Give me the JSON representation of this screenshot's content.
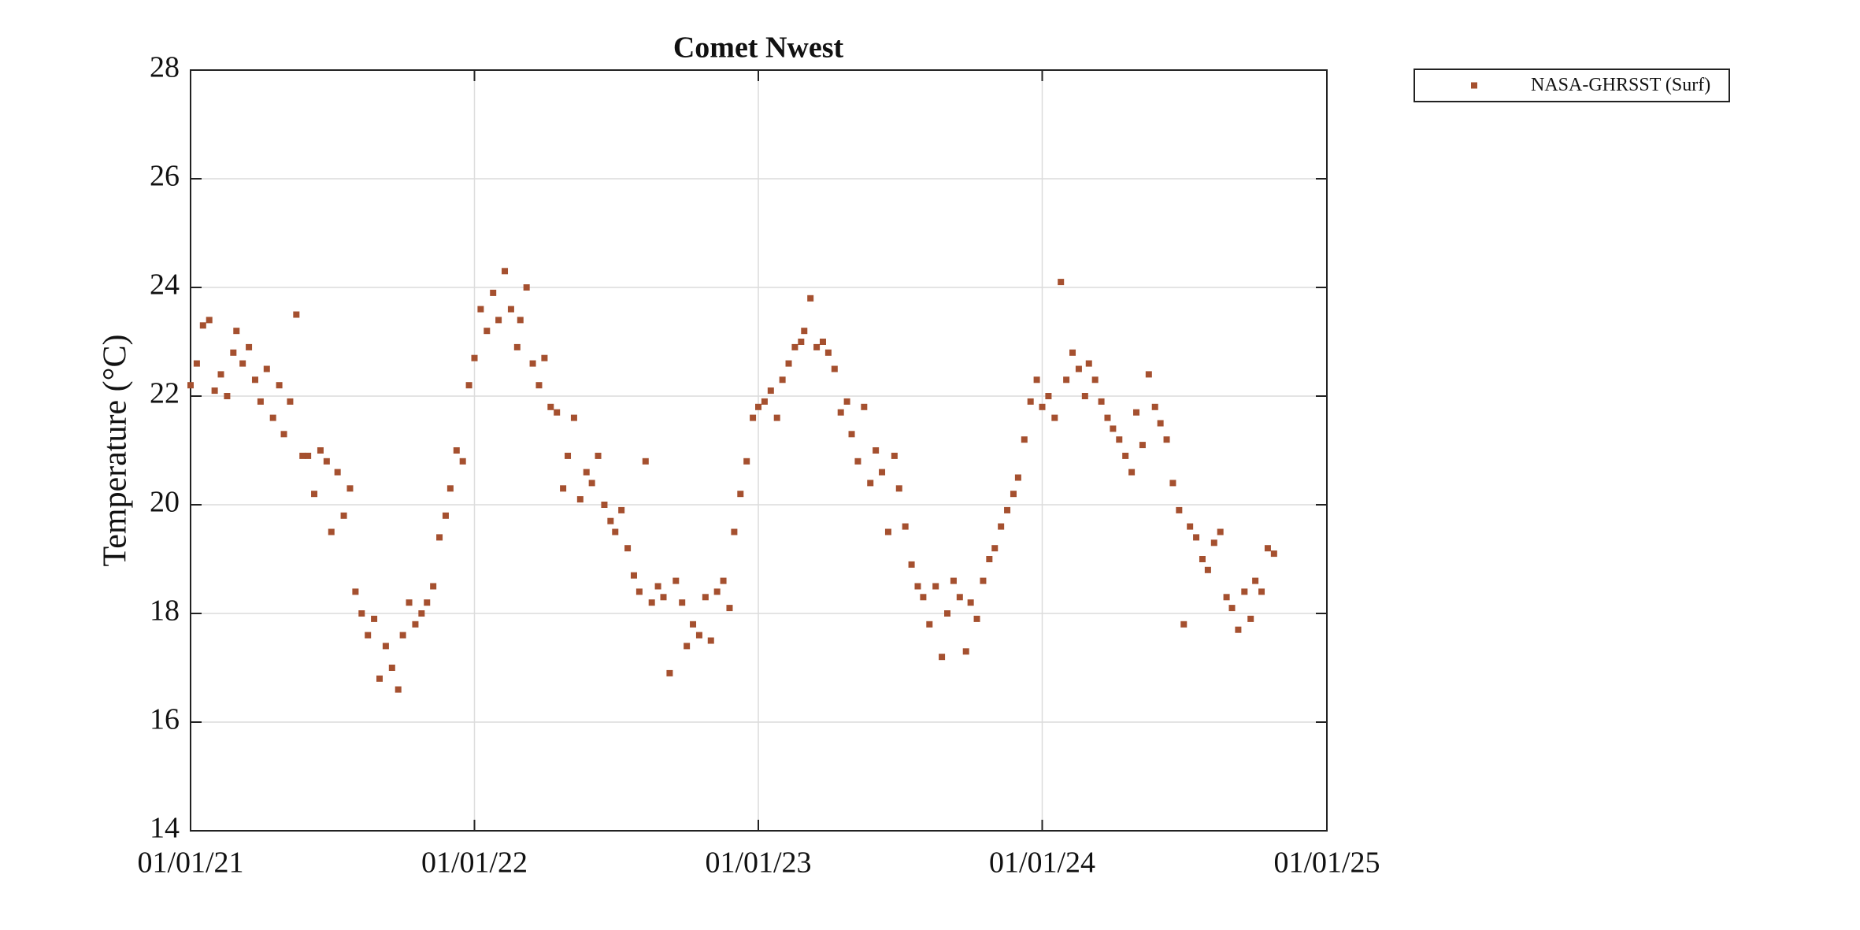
{
  "chart_data": {
    "type": "scatter",
    "title": "Comet Nwest",
    "ylabel": "Temperature (°C)",
    "legend": "outside-upper-right",
    "grid": true,
    "xlim": [
      "2021-01-01",
      "2025-01-01"
    ],
    "xticks": [
      {
        "value": "2021-01-01",
        "label": "01/01/21"
      },
      {
        "value": "2022-01-01",
        "label": "01/01/22"
      },
      {
        "value": "2023-01-01",
        "label": "01/01/23"
      },
      {
        "value": "2024-01-01",
        "label": "01/01/24"
      },
      {
        "value": "2025-01-01",
        "label": "01/01/25"
      }
    ],
    "ylim": [
      14,
      28
    ],
    "yticks": [
      14,
      16,
      18,
      20,
      22,
      24,
      26,
      28
    ],
    "x": [
      "2021-01-01",
      "2021-01-09",
      "2021-01-17",
      "2021-01-25",
      "2021-02-01",
      "2021-02-09",
      "2021-02-17",
      "2021-02-25",
      "2021-03-01",
      "2021-03-09",
      "2021-03-17",
      "2021-03-25",
      "2021-04-01",
      "2021-04-09",
      "2021-04-17",
      "2021-04-25",
      "2021-05-01",
      "2021-05-09",
      "2021-05-17",
      "2021-05-25",
      "2021-06-01",
      "2021-06-09",
      "2021-06-17",
      "2021-06-25",
      "2021-07-01",
      "2021-07-09",
      "2021-07-17",
      "2021-07-25",
      "2021-08-01",
      "2021-08-09",
      "2021-08-17",
      "2021-08-25",
      "2021-09-01",
      "2021-09-09",
      "2021-09-17",
      "2021-09-25",
      "2021-10-01",
      "2021-10-09",
      "2021-10-17",
      "2021-10-25",
      "2021-11-01",
      "2021-11-09",
      "2021-11-17",
      "2021-11-25",
      "2021-12-01",
      "2021-12-09",
      "2021-12-17",
      "2021-12-25",
      "2022-01-01",
      "2022-01-09",
      "2022-01-17",
      "2022-01-25",
      "2022-02-01",
      "2022-02-09",
      "2022-02-17",
      "2022-02-25",
      "2022-03-01",
      "2022-03-09",
      "2022-03-17",
      "2022-03-25",
      "2022-04-01",
      "2022-04-09",
      "2022-04-17",
      "2022-04-25",
      "2022-05-01",
      "2022-05-09",
      "2022-05-17",
      "2022-05-25",
      "2022-06-01",
      "2022-06-09",
      "2022-06-17",
      "2022-06-25",
      "2022-07-01",
      "2022-07-09",
      "2022-07-17",
      "2022-07-25",
      "2022-08-01",
      "2022-08-09",
      "2022-08-17",
      "2022-08-25",
      "2022-09-01",
      "2022-09-09",
      "2022-09-17",
      "2022-09-25",
      "2022-10-01",
      "2022-10-09",
      "2022-10-17",
      "2022-10-25",
      "2022-11-01",
      "2022-11-09",
      "2022-11-17",
      "2022-11-25",
      "2022-12-01",
      "2022-12-09",
      "2022-12-17",
      "2022-12-25",
      "2023-01-01",
      "2023-01-09",
      "2023-01-17",
      "2023-01-25",
      "2023-02-01",
      "2023-02-09",
      "2023-02-17",
      "2023-02-25",
      "2023-03-01",
      "2023-03-09",
      "2023-03-17",
      "2023-03-25",
      "2023-04-01",
      "2023-04-09",
      "2023-04-17",
      "2023-04-25",
      "2023-05-01",
      "2023-05-09",
      "2023-05-17",
      "2023-05-25",
      "2023-06-01",
      "2023-06-09",
      "2023-06-17",
      "2023-06-25",
      "2023-07-01",
      "2023-07-09",
      "2023-07-17",
      "2023-07-25",
      "2023-08-01",
      "2023-08-09",
      "2023-08-17",
      "2023-08-25",
      "2023-09-01",
      "2023-09-09",
      "2023-09-17",
      "2023-09-25",
      "2023-10-01",
      "2023-10-09",
      "2023-10-17",
      "2023-10-25",
      "2023-11-01",
      "2023-11-09",
      "2023-11-17",
      "2023-11-25",
      "2023-12-01",
      "2023-12-09",
      "2023-12-17",
      "2023-12-25",
      "2024-01-01",
      "2024-01-09",
      "2024-01-17",
      "2024-01-25",
      "2024-02-01",
      "2024-02-09",
      "2024-02-17",
      "2024-02-25",
      "2024-03-01",
      "2024-03-09",
      "2024-03-17",
      "2024-03-25",
      "2024-04-01",
      "2024-04-09",
      "2024-04-17",
      "2024-04-25",
      "2024-05-01",
      "2024-05-09",
      "2024-05-17",
      "2024-05-25",
      "2024-06-01",
      "2024-06-09",
      "2024-06-17",
      "2024-06-25",
      "2024-07-01",
      "2024-07-09",
      "2024-07-17",
      "2024-07-25",
      "2024-08-01",
      "2024-08-09",
      "2024-08-17",
      "2024-08-25",
      "2024-09-01",
      "2024-09-09",
      "2024-09-17",
      "2024-09-25",
      "2024-10-01",
      "2024-10-09",
      "2024-10-17",
      "2024-10-25"
    ],
    "series": [
      {
        "name": "NASA-GHRSST (Surf)",
        "color": "#a5502f",
        "values": [
          22.2,
          22.6,
          23.3,
          23.4,
          22.1,
          22.4,
          22.0,
          22.8,
          23.2,
          22.6,
          22.9,
          22.3,
          21.9,
          22.5,
          21.6,
          22.2,
          21.3,
          21.9,
          23.5,
          20.9,
          20.9,
          20.2,
          21.0,
          20.8,
          19.5,
          20.6,
          19.8,
          20.3,
          18.4,
          18.0,
          17.6,
          17.9,
          16.8,
          17.4,
          17.0,
          16.6,
          17.6,
          18.2,
          17.8,
          18.0,
          18.2,
          18.5,
          19.4,
          19.8,
          20.3,
          21.0,
          20.8,
          22.2,
          22.7,
          23.6,
          23.2,
          23.9,
          23.4,
          24.3,
          23.6,
          22.9,
          23.4,
          24.0,
          22.6,
          22.2,
          22.7,
          21.8,
          21.7,
          20.3,
          20.9,
          21.6,
          20.1,
          20.6,
          20.4,
          20.9,
          20.0,
          19.7,
          19.5,
          19.9,
          19.2,
          18.7,
          18.4,
          20.8,
          18.2,
          18.5,
          18.3,
          16.9,
          18.6,
          18.2,
          17.4,
          17.8,
          17.6,
          18.3,
          17.5,
          18.4,
          18.6,
          18.1,
          19.5,
          20.2,
          20.8,
          21.6,
          21.8,
          21.9,
          22.1,
          21.6,
          22.3,
          22.6,
          22.9,
          23.0,
          23.2,
          23.8,
          22.9,
          23.0,
          22.8,
          22.5,
          21.7,
          21.9,
          21.3,
          20.8,
          21.8,
          20.4,
          21.0,
          20.6,
          19.5,
          20.9,
          20.3,
          19.6,
          18.9,
          18.5,
          18.3,
          17.8,
          18.5,
          17.2,
          18.0,
          18.6,
          18.3,
          17.3,
          18.2,
          17.9,
          18.6,
          19.0,
          19.2,
          19.6,
          19.9,
          20.2,
          20.5,
          21.2,
          21.9,
          22.3,
          21.8,
          22.0,
          21.6,
          24.1,
          22.3,
          22.8,
          22.5,
          22.0,
          22.6,
          22.3,
          21.9,
          21.6,
          21.4,
          21.2,
          20.9,
          20.6,
          21.7,
          21.1,
          22.4,
          21.8,
          21.5,
          21.2,
          20.4,
          19.9,
          17.8,
          19.6,
          19.4,
          19.0,
          18.8,
          19.3,
          19.5,
          18.3,
          18.1,
          17.7,
          18.4,
          17.9,
          18.6,
          18.4,
          19.2,
          19.1
        ]
      }
    ]
  }
}
